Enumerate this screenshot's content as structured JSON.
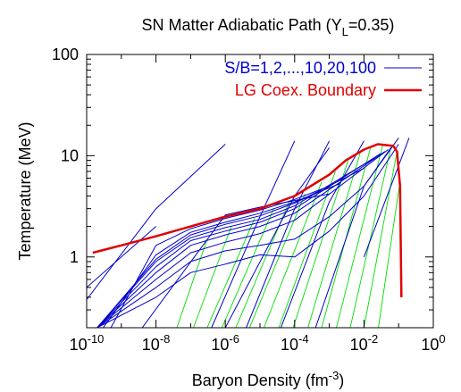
{
  "chart_data": {
    "type": "line",
    "title": {
      "main": "SN Matter Adiabatic Path (Y",
      "sub": "L",
      "tail": "=0.35)"
    },
    "xlabel": {
      "main": "Baryon Density (fm",
      "sup": "-3",
      "tail": ")"
    },
    "ylabel": "Temperature (MeV)",
    "xscale": "log",
    "yscale": "log",
    "xlim": [
      1e-10,
      1
    ],
    "ylim": [
      0.2,
      100
    ],
    "x_ticks": [
      {
        "base": "10",
        "exp": "-10",
        "value": 1e-10
      },
      {
        "base": "10",
        "exp": "-8",
        "value": 1e-08
      },
      {
        "base": "10",
        "exp": "-6",
        "value": 1e-06
      },
      {
        "base": "10",
        "exp": "-4",
        "value": 0.0001
      },
      {
        "base": "10",
        "exp": "-2",
        "value": 0.01
      },
      {
        "base": "10",
        "exp": "0",
        "value": 1
      }
    ],
    "y_ticks": [
      {
        "label": "1",
        "value": 1
      },
      {
        "label": "10",
        "value": 10
      },
      {
        "label": "100",
        "value": 100
      }
    ],
    "legend_position": "top-right",
    "legend": [
      {
        "label": "S/B=1,2,...,10,20,100",
        "color": "#0000cc"
      },
      {
        "label": "LG Coex. Boundary",
        "color": "#e00000"
      }
    ],
    "colors": {
      "adiabats": "#0000cc",
      "boundary": "#e00000",
      "green_lines": "#00dd00"
    },
    "series": [
      {
        "name": "S/B=1,2,...,10,20,100",
        "color": "#0000cc",
        "lines": [
          [
            [
              1e-10,
              0.5
            ],
            [
              1e-08,
              2.0
            ]
          ],
          [
            [
              4e-09,
              0.2
            ],
            [
              1e-06,
              2.6
            ],
            [
              1e-05,
              3.1
            ],
            [
              0.001,
              4.2
            ]
          ],
          [
            [
              5e-10,
              0.2
            ],
            [
              1e-08,
              1.3
            ],
            [
              1e-07,
              1.9
            ],
            [
              1e-06,
              2.4
            ],
            [
              1e-05,
              2.9
            ],
            [
              0.0001,
              3.7
            ],
            [
              0.001,
              5.0
            ]
          ],
          [
            [
              3e-10,
              0.2
            ],
            [
              1e-08,
              1.05
            ],
            [
              1e-07,
              1.75
            ],
            [
              1e-06,
              2.2
            ],
            [
              1e-05,
              2.7
            ],
            [
              0.0001,
              3.5
            ],
            [
              0.002,
              5.3
            ]
          ],
          [
            [
              2e-10,
              0.2
            ],
            [
              1e-08,
              0.95
            ],
            [
              1e-07,
              1.65
            ],
            [
              1e-06,
              2.1
            ],
            [
              1e-05,
              2.55
            ],
            [
              0.0001,
              3.4
            ],
            [
              0.01,
              7.5
            ]
          ],
          [
            [
              2e-10,
              0.2
            ],
            [
              1e-08,
              0.9
            ],
            [
              1e-07,
              1.55
            ],
            [
              1e-06,
              1.95
            ],
            [
              1e-05,
              2.35
            ],
            [
              0.0001,
              3.2
            ],
            [
              0.02,
              9.5
            ]
          ],
          [
            [
              2e-10,
              0.2
            ],
            [
              1e-08,
              0.8
            ],
            [
              1e-07,
              1.45
            ],
            [
              1e-06,
              1.8
            ],
            [
              1e-05,
              2.2
            ],
            [
              0.0001,
              3.0
            ],
            [
              0.03,
              10.5
            ]
          ],
          [
            [
              2e-10,
              0.2
            ],
            [
              1e-08,
              0.7
            ],
            [
              1e-07,
              1.3
            ],
            [
              1e-06,
              1.65
            ],
            [
              1e-05,
              2.0
            ],
            [
              0.0001,
              2.7
            ],
            [
              0.04,
              11.0
            ]
          ],
          [
            [
              2e-10,
              0.2
            ],
            [
              1e-08,
              0.6
            ],
            [
              1e-07,
              1.1
            ],
            [
              1e-06,
              1.4
            ],
            [
              1e-05,
              1.7
            ],
            [
              0.0001,
              2.3
            ],
            [
              0.05,
              11.5
            ]
          ],
          [
            [
              2e-10,
              0.2
            ],
            [
              1e-08,
              0.5
            ],
            [
              1e-07,
              0.9
            ],
            [
              1e-06,
              1.15
            ],
            [
              1e-05,
              1.3
            ],
            [
              0.0001,
              1.5
            ],
            [
              0.001,
              2.5
            ],
            [
              0.01,
              5.0
            ],
            [
              0.06,
              12.0
            ]
          ],
          [
            [
              2e-10,
              0.2
            ],
            [
              1e-08,
              0.4
            ],
            [
              1e-07,
              0.7
            ],
            [
              1e-06,
              0.85
            ],
            [
              1e-05,
              1.05
            ],
            [
              0.0001,
              1.0
            ],
            [
              0.001,
              1.8
            ],
            [
              0.01,
              4.0
            ],
            [
              0.1,
              13.0
            ]
          ],
          [
            [
              1e-10,
              0.38
            ],
            [
              1e-08,
              3.0
            ],
            [
              1e-06,
              13.0
            ]
          ],
          [
            [
              1e-06,
              0.2
            ],
            [
              0.0001,
              4.0
            ],
            [
              0.001,
              12.0
            ]
          ],
          [
            [
              4e-07,
              0.2
            ],
            [
              1e-05,
              2.5
            ],
            [
              0.0001,
              14.0
            ]
          ],
          [
            [
              4e-06,
              0.2
            ],
            [
              0.0001,
              3.0
            ],
            [
              0.001,
              14.0
            ]
          ],
          [
            [
              4e-05,
              0.2
            ],
            [
              0.001,
              3.5
            ],
            [
              0.01,
              14.0
            ]
          ],
          [
            [
              0.0004,
              0.2
            ],
            [
              0.01,
              5.0
            ],
            [
              0.1,
              15.0
            ]
          ],
          [
            [
              0.01,
              1.0
            ],
            [
              0.1,
              8.0
            ],
            [
              0.2,
              15.0
            ]
          ]
        ]
      },
      {
        "name": "LG Coex. Boundary",
        "color": "#e00000",
        "points": [
          [
            1.5e-10,
            1.1
          ],
          [
            1e-09,
            1.3
          ],
          [
            1e-08,
            1.6
          ],
          [
            1e-07,
            2.0
          ],
          [
            1e-06,
            2.5
          ],
          [
            1e-05,
            3.0
          ],
          [
            0.0001,
            4.0
          ],
          [
            0.001,
            6.5
          ],
          [
            0.003,
            9.0
          ],
          [
            0.01,
            11.5
          ],
          [
            0.025,
            13.0
          ],
          [
            0.07,
            12.5
          ],
          [
            0.09,
            11.0
          ],
          [
            0.11,
            5.0
          ],
          [
            0.12,
            0.4
          ]
        ]
      },
      {
        "name": "",
        "color": "#00dd00",
        "lines": [
          [
            [
              4e-08,
              0.2
            ],
            [
              3e-07,
              1.5
            ]
          ],
          [
            [
              1.2e-07,
              0.2
            ],
            [
              1.5e-06,
              2.0
            ]
          ],
          [
            [
              3e-07,
              0.2
            ],
            [
              7e-06,
              2.4
            ]
          ],
          [
            [
              8e-07,
              0.2
            ],
            [
              2.5e-05,
              3.0
            ]
          ],
          [
            [
              2e-06,
              0.2
            ],
            [
              7e-05,
              3.5
            ]
          ],
          [
            [
              5e-06,
              0.2
            ],
            [
              0.0002,
              4.2
            ]
          ],
          [
            [
              1.3e-05,
              0.2
            ],
            [
              0.0006,
              5.5
            ]
          ],
          [
            [
              3.5e-05,
              0.2
            ],
            [
              0.0015,
              7.0
            ]
          ],
          [
            [
              9e-05,
              0.2
            ],
            [
              0.0035,
              9.0
            ]
          ],
          [
            [
              0.00024,
              0.2
            ],
            [
              0.008,
              11.0
            ]
          ],
          [
            [
              0.0006,
              0.2
            ],
            [
              0.016,
              12.5
            ]
          ],
          [
            [
              0.0016,
              0.2
            ],
            [
              0.035,
              12.8
            ]
          ],
          [
            [
              0.004,
              0.2
            ],
            [
              0.06,
              12.2
            ]
          ],
          [
            [
              0.01,
              0.2
            ],
            [
              0.09,
              11.0
            ]
          ],
          [
            [
              0.026,
              0.2
            ],
            [
              0.105,
              5.0
            ]
          ]
        ]
      }
    ]
  }
}
